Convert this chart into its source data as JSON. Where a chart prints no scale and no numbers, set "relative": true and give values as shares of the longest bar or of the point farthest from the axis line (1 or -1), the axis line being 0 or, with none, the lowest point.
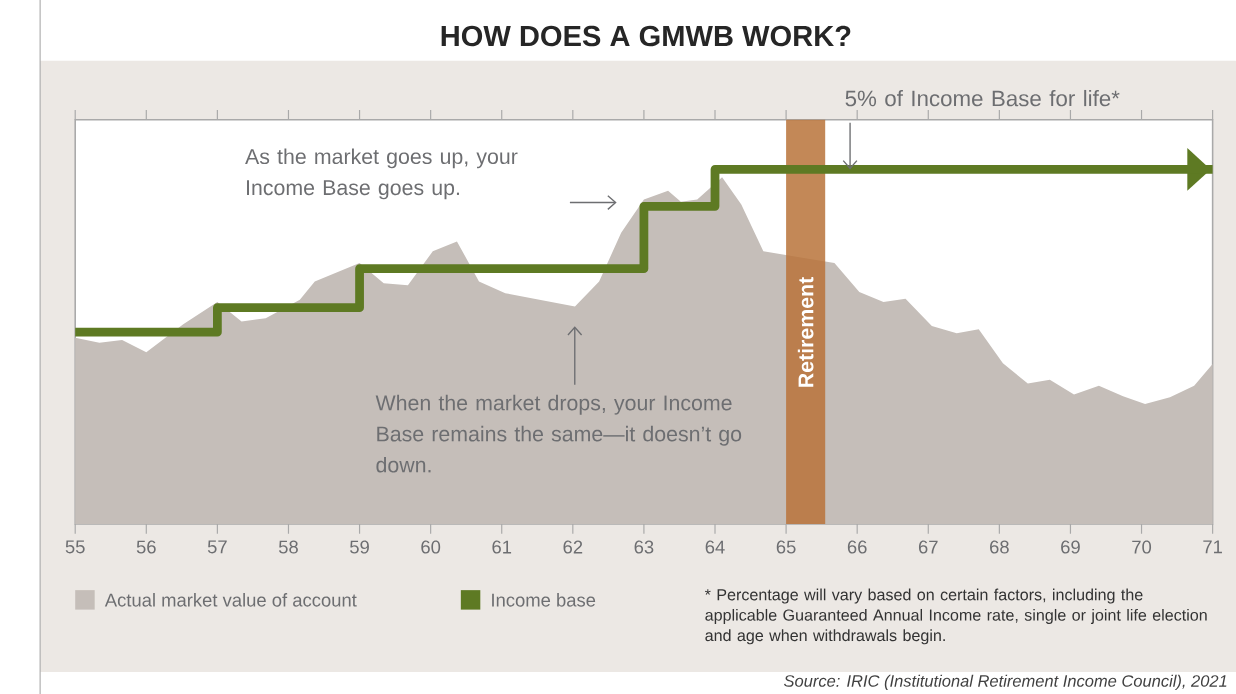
{
  "chart_data": {
    "type": "area",
    "title": "HOW DOES A GMWB WORK?",
    "relative": true,
    "xlim": [
      55,
      71
    ],
    "xticks": [
      55,
      56,
      57,
      58,
      59,
      60,
      61,
      62,
      63,
      64,
      65,
      66,
      67,
      68,
      69,
      70,
      71
    ],
    "legend": "bottom",
    "series": [
      {
        "name": "Actual market value of account",
        "color": "#c5beb9",
        "x": [
          55.0,
          55.34,
          55.66,
          56.0,
          56.52,
          57.0,
          57.34,
          57.68,
          58.16,
          58.37,
          59.0,
          59.34,
          59.68,
          60.03,
          60.37,
          60.68,
          61.05,
          61.53,
          62.03,
          62.37,
          62.68,
          63.0,
          63.34,
          63.52,
          63.75,
          64.1,
          64.37,
          64.68,
          65.05,
          65.37,
          65.68,
          66.03,
          66.37,
          66.68,
          67.05,
          67.4,
          67.71,
          68.05,
          68.4,
          68.71,
          69.05,
          69.4,
          69.74,
          70.05,
          70.4,
          70.74,
          71.0
        ],
        "values": [
          0.525,
          0.511,
          0.519,
          0.484,
          0.563,
          0.626,
          0.571,
          0.58,
          0.632,
          0.684,
          0.736,
          0.679,
          0.673,
          0.769,
          0.797,
          0.684,
          0.651,
          0.632,
          0.613,
          0.684,
          0.821,
          0.915,
          0.94,
          0.909,
          0.915,
          0.978,
          0.901,
          0.769,
          null,
          null,
          0.736,
          0.654,
          0.626,
          0.635,
          0.558,
          0.538,
          0.549,
          0.453,
          0.396,
          0.407,
          0.365,
          0.39,
          0.36,
          0.338,
          0.357,
          0.39,
          0.451
        ]
      },
      {
        "name": "Income base",
        "type": "step",
        "color": "#5e7a23",
        "x": [
          55,
          57,
          59,
          63,
          64,
          71
        ],
        "values": [
          0.541,
          0.61,
          0.72,
          0.896,
          1.0,
          1.0
        ]
      }
    ],
    "bands": [
      {
        "axis": "x",
        "from": 65,
        "to": 65.55,
        "label": "Retirement",
        "color": "#b8733a"
      }
    ],
    "annotations": [
      "As the market goes up, your Income Base goes up.",
      "When the market drops, your Income Base remains the same—it doesn’t go down.",
      {
        "text": "5% of Income Base for life*",
        "x": 65.9,
        "y": 1.0
      },
      "* Percentage will vary based on certain factors, including the applicable Guaranteed Annual Income rate, single or joint life election and age when withdrawals begin.",
      "Source: IRIC (Institutional Retirement Income Council), 2021"
    ]
  }
}
